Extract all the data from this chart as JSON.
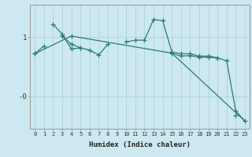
{
  "xlabel": "Humidex (Indice chaleur)",
  "background_color": "#cde8f0",
  "grid_color": "#a8d4de",
  "line_color": "#2a7d76",
  "x_values": [
    0,
    1,
    2,
    3,
    4,
    5,
    6,
    7,
    8,
    9,
    10,
    11,
    12,
    13,
    14,
    15,
    16,
    17,
    18,
    19,
    20,
    21,
    22,
    23
  ],
  "series1": [
    0.72,
    0.85,
    null,
    1.02,
    0.88,
    0.82,
    0.78,
    0.7,
    0.88,
    null,
    0.92,
    0.95,
    0.95,
    1.3,
    1.28,
    0.75,
    0.72,
    0.72,
    0.68,
    0.68,
    0.65,
    null,
    -0.32,
    null
  ],
  "series2": [
    null,
    null,
    1.22,
    1.05,
    0.8,
    0.82,
    null,
    null,
    null,
    null,
    null,
    null,
    null,
    null,
    null,
    null,
    null,
    null,
    null,
    null,
    null,
    null,
    null,
    null
  ],
  "series3": [
    0.72,
    null,
    null,
    null,
    1.02,
    null,
    null,
    null,
    null,
    null,
    null,
    null,
    null,
    null,
    null,
    0.73,
    0.68,
    0.69,
    0.66,
    0.66,
    0.65,
    0.6,
    -0.25,
    -0.42
  ],
  "series4": [
    0.72,
    null,
    null,
    null,
    1.02,
    null,
    null,
    null,
    null,
    null,
    null,
    null,
    null,
    null,
    null,
    0.73,
    null,
    null,
    null,
    null,
    null,
    null,
    null,
    -0.42
  ],
  "ylim": [
    -0.55,
    1.55
  ],
  "xlim": [
    -0.5,
    23.5
  ],
  "ytick_positions": [
    1.0,
    0.0
  ],
  "ytick_labels": [
    "1",
    "-0"
  ],
  "xtick_labels": [
    "0",
    "1",
    "2",
    "3",
    "4",
    "5",
    "6",
    "7",
    "8",
    "9",
    "10",
    "11",
    "12",
    "13",
    "14",
    "15",
    "16",
    "17",
    "18",
    "19",
    "20",
    "21",
    "22",
    "23"
  ]
}
